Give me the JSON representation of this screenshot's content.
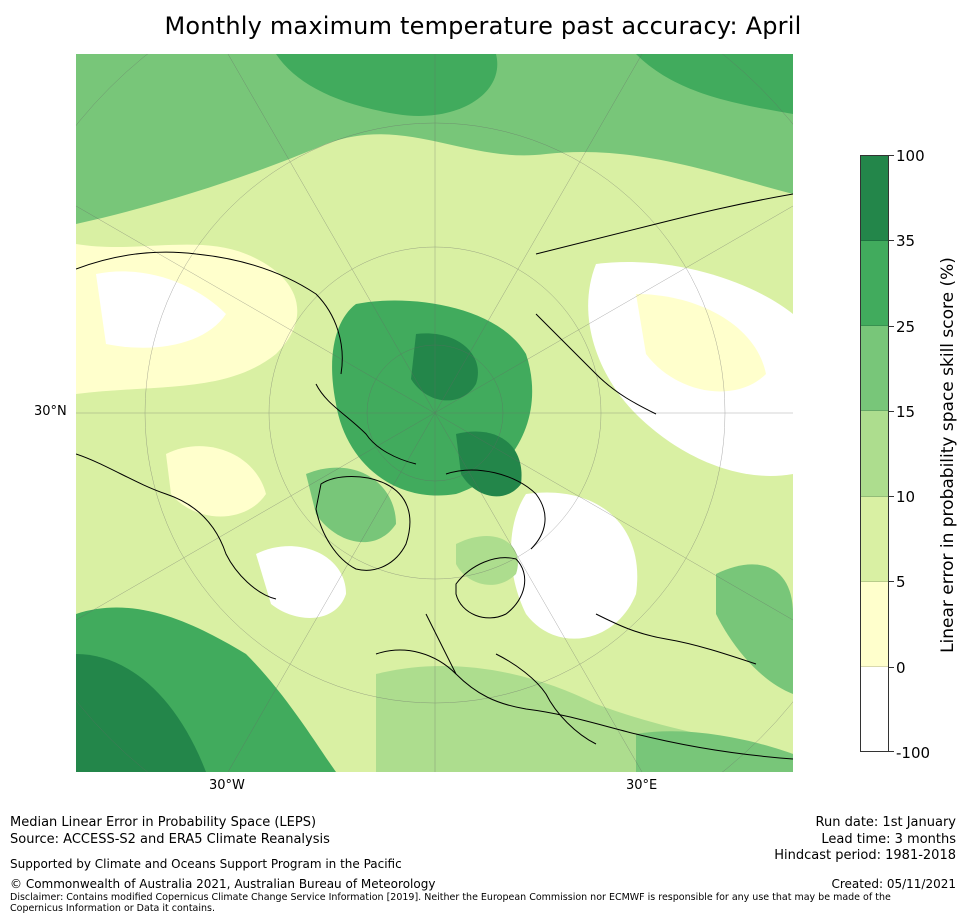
{
  "title": "Monthly maximum temperature past accuracy: April",
  "map": {
    "lat_labels": [
      "30°N"
    ],
    "lon_labels": [
      "30°W",
      "30°E"
    ]
  },
  "colorbar": {
    "label": "Linear error in probability space skill score (%)",
    "ticks": [
      "100",
      "35",
      "25",
      "15",
      "10",
      "5",
      "0",
      "-100"
    ],
    "colors_top_to_bottom": [
      "#23864a",
      "#41ab5d",
      "#78c679",
      "#addd8e",
      "#d9f0a3",
      "#ffffcc",
      "#ffffff"
    ]
  },
  "footer": {
    "left_line1": "Median Linear Error in Probability Space (LEPS)",
    "left_line2": "Source: ACCESS-S2 and ERA5 Climate Reanalysis",
    "support": "Supported by Climate and Oceans Support Program in the Pacific",
    "copyright": "© Commonwealth of Australia 2021, Australian Bureau of Meteorology",
    "disclaimer": "Disclaimer: Contains modified Copernicus Climate Change Service Information [2019]. Neither the European Commission nor ECMWF is responsible for any use that may be made of the Copernicus Information or Data it contains.",
    "run_date": "Run date: 1st January",
    "lead_time": "Lead time: 3 months",
    "hindcast": "Hindcast period: 1981-2018",
    "created": "Created: 05/11/2021"
  }
}
